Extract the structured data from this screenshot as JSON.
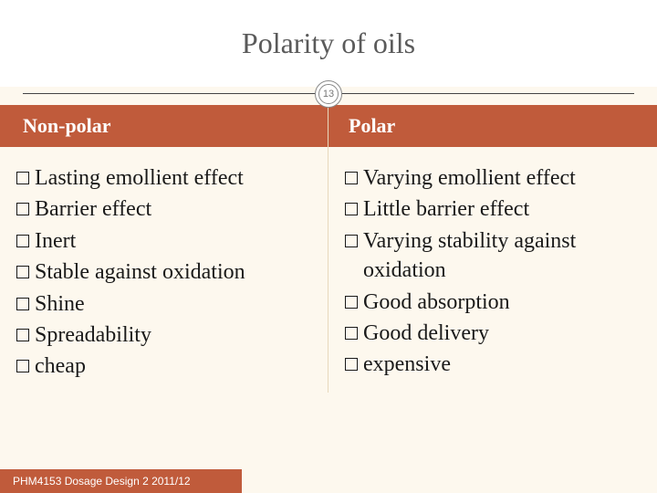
{
  "colors": {
    "accent": "#c05b3b",
    "page_bg": "#fdf8ee",
    "title_bg": "#ffffff",
    "cell_border": "#e8d9bd",
    "text": "#1a1a1a",
    "title_text": "#5a5a5a"
  },
  "title": "Polarity of oils",
  "slide_number": "13",
  "table": {
    "headers": {
      "left": "Non-polar",
      "right": "Polar"
    },
    "left_items": [
      "Lasting emollient effect",
      "Barrier effect",
      "Inert",
      "Stable against oxidation",
      "Shine",
      "Spreadability",
      "cheap"
    ],
    "right_items": [
      "Varying emollient effect",
      "Little barrier effect",
      "Varying stability against oxidation",
      "Good absorption",
      "Good delivery",
      "expensive"
    ]
  },
  "footer": "PHM4153 Dosage Design 2 2011/12",
  "typography": {
    "title_fontsize": 32,
    "header_fontsize": 22,
    "body_fontsize": 24,
    "footer_fontsize": 12
  }
}
